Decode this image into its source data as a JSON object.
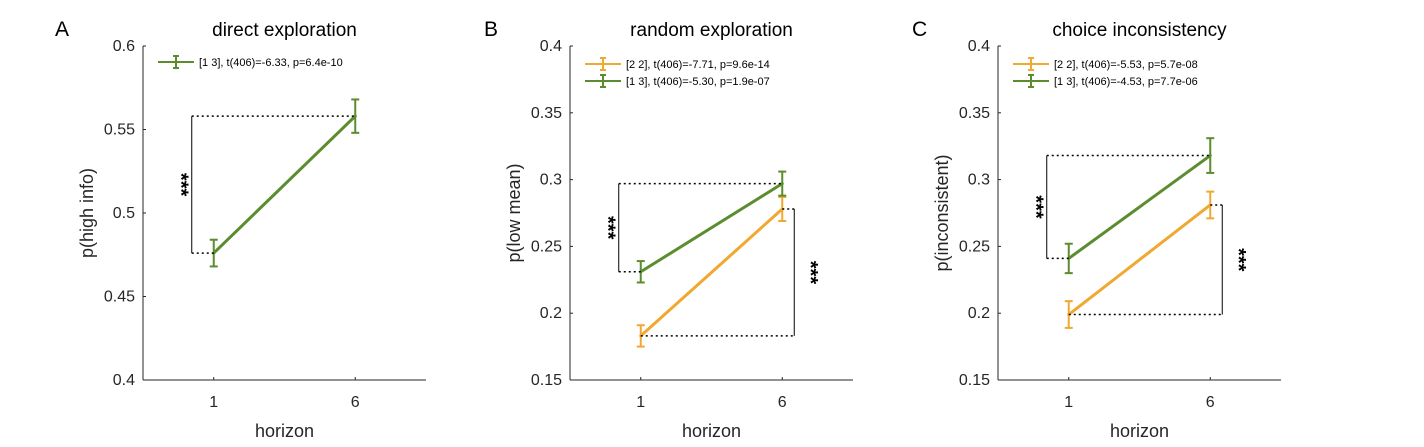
{
  "chart_data": [
    {
      "type": "line",
      "panel_letter": "A",
      "title": "direct exploration",
      "xlabel": "horizon",
      "ylabel": "p(high info)",
      "categories": [
        "1",
        "6"
      ],
      "ylim": [
        0.4,
        0.6
      ],
      "yticks": [
        "0.4",
        "0.45",
        "0.5",
        "0.55",
        "0.6"
      ],
      "series": [
        {
          "name": "[1 3], t(406)=-6.33, p=6.4e-10",
          "color": "#5b8c2e",
          "values": [
            0.476,
            0.558
          ],
          "err": [
            0.008,
            0.01
          ]
        }
      ],
      "annotations": [
        {
          "text": "***",
          "series": 0,
          "side": "left"
        }
      ]
    },
    {
      "type": "line",
      "panel_letter": "B",
      "title": "random exploration",
      "xlabel": "horizon",
      "ylabel": "p(low mean)",
      "categories": [
        "1",
        "6"
      ],
      "ylim": [
        0.15,
        0.4
      ],
      "yticks": [
        "0.15",
        "0.2",
        "0.25",
        "0.3",
        "0.35",
        "0.4"
      ],
      "series": [
        {
          "name": "[2 2], t(406)=-7.71, p=9.6e-14",
          "color": "#f0a830",
          "values": [
            0.183,
            0.278
          ],
          "err": [
            0.008,
            0.009
          ]
        },
        {
          "name": "[1 3], t(406)=-5.30, p=1.9e-07",
          "color": "#5b8c2e",
          "values": [
            0.231,
            0.297
          ],
          "err": [
            0.008,
            0.009
          ]
        }
      ],
      "annotations": [
        {
          "text": "***",
          "series": 1,
          "side": "left"
        },
        {
          "text": "***",
          "series": 0,
          "side": "right"
        }
      ]
    },
    {
      "type": "line",
      "panel_letter": "C",
      "title": "choice inconsistency",
      "xlabel": "horizon",
      "ylabel": "p(inconsistent)",
      "categories": [
        "1",
        "6"
      ],
      "ylim": [
        0.15,
        0.4
      ],
      "yticks": [
        "0.15",
        "0.2",
        "0.25",
        "0.3",
        "0.35",
        "0.4"
      ],
      "series": [
        {
          "name": "[2 2], t(406)=-5.53, p=5.7e-08",
          "color": "#f0a830",
          "values": [
            0.199,
            0.281
          ],
          "err": [
            0.01,
            0.01
          ]
        },
        {
          "name": "[1 3], t(406)=-4.53, p=7.7e-06",
          "color": "#5b8c2e",
          "values": [
            0.241,
            0.318
          ],
          "err": [
            0.011,
            0.013
          ]
        }
      ],
      "annotations": [
        {
          "text": "***",
          "series": 1,
          "side": "left"
        },
        {
          "text": "***",
          "series": 0,
          "side": "right"
        }
      ]
    }
  ]
}
